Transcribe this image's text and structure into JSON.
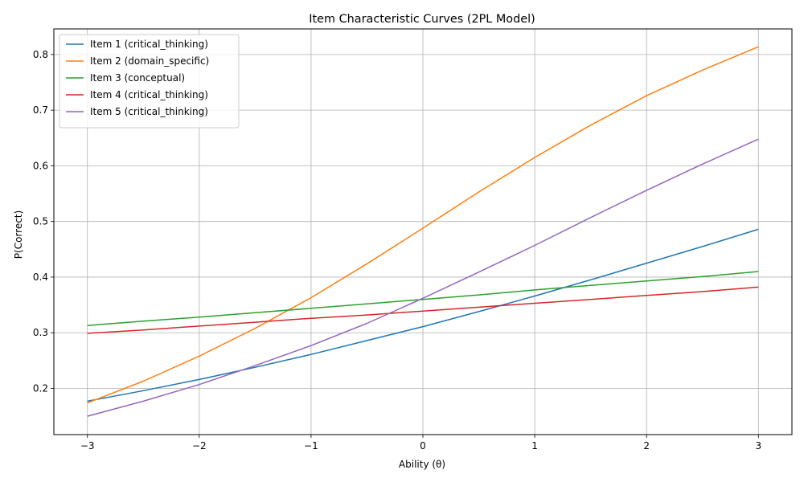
{
  "chart_data": {
    "type": "line",
    "title": "Item Characteristic Curves (2PL Model)",
    "xlabel": "Ability (θ)",
    "ylabel": "P(Correct)",
    "xlim": [
      -3.3,
      3.3
    ],
    "ylim": [
      0.117,
      0.846
    ],
    "x_ticks": [
      -3,
      -2,
      -1,
      0,
      1,
      2,
      3
    ],
    "x_tick_labels": [
      "−3",
      "−2",
      "−1",
      "0",
      "1",
      "2",
      "3"
    ],
    "y_ticks": [
      0.2,
      0.3,
      0.4,
      0.5,
      0.6,
      0.7,
      0.8
    ],
    "y_tick_labels": [
      "0.2",
      "0.3",
      "0.4",
      "0.5",
      "0.6",
      "0.7",
      "0.8"
    ],
    "grid": true,
    "legend_position": "top-left",
    "x": [
      -3,
      -2.5,
      -2,
      -1.5,
      -1,
      -0.5,
      0,
      0.5,
      1,
      1.5,
      2,
      2.5,
      3
    ],
    "series": [
      {
        "name": "Item 1 (critical_thinking)",
        "color": "#1f77b4",
        "values": [
          0.177,
          0.196,
          0.216,
          0.238,
          0.261,
          0.286,
          0.311,
          0.338,
          0.366,
          0.395,
          0.425,
          0.455,
          0.486
        ]
      },
      {
        "name": "Item 2 (domain_specific)",
        "color": "#ff7f0e",
        "values": [
          0.174,
          0.213,
          0.258,
          0.308,
          0.363,
          0.424,
          0.488,
          0.553,
          0.615,
          0.673,
          0.726,
          0.772,
          0.814
        ]
      },
      {
        "name": "Item 3 (conceptual)",
        "color": "#2ca02c",
        "values": [
          0.313,
          0.321,
          0.328,
          0.336,
          0.344,
          0.352,
          0.36,
          0.368,
          0.377,
          0.385,
          0.393,
          0.401,
          0.41
        ]
      },
      {
        "name": "Item 4 (critical_thinking)",
        "color": "#d62728",
        "values": [
          0.299,
          0.305,
          0.312,
          0.319,
          0.326,
          0.332,
          0.339,
          0.346,
          0.353,
          0.36,
          0.367,
          0.374,
          0.382
        ]
      },
      {
        "name": "Item 5 (critical_thinking)",
        "color": "#9467bd",
        "values": [
          0.15,
          0.177,
          0.207,
          0.241,
          0.277,
          0.317,
          0.362,
          0.409,
          0.457,
          0.507,
          0.556,
          0.603,
          0.648
        ]
      }
    ]
  }
}
